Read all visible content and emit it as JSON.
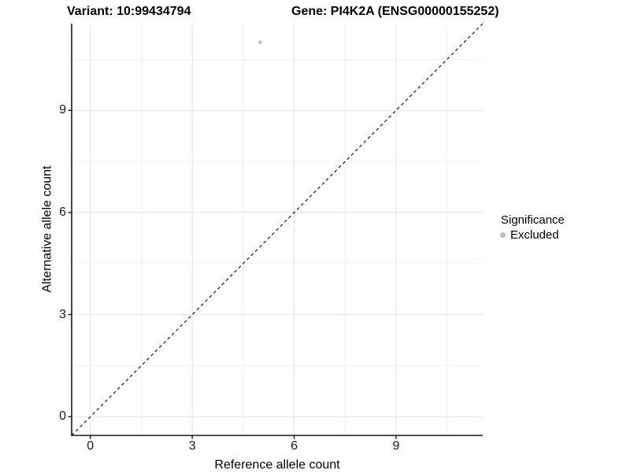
{
  "titles": {
    "variant": "Variant: 10:99434794",
    "gene": "Gene: PI4K2A (ENSG00000155252)"
  },
  "legend": {
    "title": "Significance",
    "items": [
      {
        "label": "Excluded",
        "color": "#bebebe"
      }
    ]
  },
  "colors": {
    "background": "#ffffff",
    "grid_major": "#e4e4e4",
    "grid_minor": "#f1f1f1",
    "axis_line": "#1a1a1a",
    "tick_mark": "#1a1a1a",
    "point": "#bebebe",
    "reference_line": "#000000"
  },
  "chart_data": {
    "type": "scatter",
    "title": "Variant: 10:99434794   Gene: PI4K2A (ENSG00000155252)",
    "xlabel": "Reference allele count",
    "ylabel": "Alternative allele count",
    "xlim": [
      -0.55,
      11.55
    ],
    "ylim": [
      -0.55,
      11.55
    ],
    "xticks": [
      0,
      3,
      6,
      9
    ],
    "yticks": [
      0,
      3,
      6,
      9
    ],
    "xticks_minor": [
      1.5,
      4.5,
      7.5,
      10.5
    ],
    "yticks_minor": [
      1.5,
      4.5,
      7.5,
      10.5
    ],
    "grid": "major+minor",
    "legend_position": "right",
    "series": [
      {
        "name": "Excluded",
        "color": "#bebebe",
        "marker_radius": 2.3,
        "points": [
          [
            5,
            11
          ]
        ]
      }
    ],
    "reference_line": {
      "style": "dashed",
      "slope": 1,
      "intercept": 0,
      "color": "#000000",
      "dash": [
        4,
        3.5
      ]
    }
  }
}
